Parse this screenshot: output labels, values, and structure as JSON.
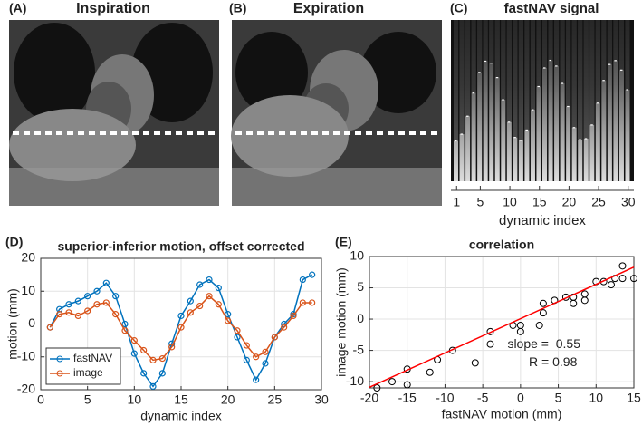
{
  "panels": [
    {
      "label": "(A)",
      "title": "Inspiration"
    },
    {
      "label": "(B)",
      "title": "Expiration"
    }
  ],
  "chart_data": [
    {
      "type": "image-strip",
      "label": "(C)",
      "title": "fastNAV signal",
      "x_label": "dynamic index",
      "xlim": [
        1,
        30
      ],
      "xticks": [
        1,
        5,
        10,
        15,
        20,
        25,
        30
      ]
    },
    {
      "type": "line",
      "label": "(D)",
      "title": "superior-inferior motion, offset corrected",
      "x_label": "dynamic index",
      "y_label": "motion (mm)",
      "x": [
        1,
        2,
        3,
        4,
        5,
        6,
        7,
        8,
        9,
        10,
        11,
        12,
        13,
        14,
        15,
        16,
        17,
        18,
        19,
        20,
        21,
        22,
        23,
        24,
        25,
        26,
        27,
        28,
        29
      ],
      "series": [
        {
          "name": "fastNAV",
          "color": "#0072BD",
          "values": [
            -1,
            4.5,
            6,
            7,
            8.5,
            10,
            12.5,
            8.5,
            0,
            -9,
            -15,
            -19,
            -15,
            -6,
            2.5,
            7,
            12,
            13.5,
            11,
            3,
            -4,
            -11,
            -17,
            -12,
            -4,
            0,
            3,
            13.5,
            15
          ]
        },
        {
          "name": "image",
          "color": "#D95319",
          "values": [
            -1,
            3,
            3.5,
            2.5,
            4,
            6,
            6.5,
            3,
            -2,
            -5,
            -8,
            -11,
            -10.5,
            -7,
            -1,
            3.5,
            5.5,
            8.5,
            6,
            1,
            -2,
            -6.5,
            -10,
            -8.5,
            -4,
            -1,
            2.5,
            6.5,
            6.5
          ]
        }
      ],
      "xlim": [
        0,
        30
      ],
      "xticks": [
        0,
        5,
        10,
        15,
        20,
        25,
        30
      ],
      "ylim": [
        -20,
        20
      ],
      "yticks": [
        -20,
        -10,
        0,
        10,
        20
      ],
      "grid": true,
      "legend": "south-west"
    },
    {
      "type": "scatter",
      "label": "(E)",
      "title": "correlation",
      "x_label": "fastNAV motion (mm)",
      "y_label": "image motion (mm)",
      "x": [
        -1,
        4.5,
        6,
        7,
        8.5,
        10,
        12.5,
        8.5,
        0,
        -9,
        -15,
        -19,
        -15,
        -6,
        2.5,
        7,
        12,
        13.5,
        11,
        3,
        -4,
        -11,
        -17,
        -12,
        -4,
        0,
        3,
        13.5,
        15
      ],
      "values": [
        -1,
        3,
        3.5,
        2.5,
        4,
        6,
        6.5,
        3,
        -2,
        -5,
        -8,
        -11,
        -10.5,
        -7,
        -1,
        3.5,
        5.5,
        8.5,
        6,
        1,
        -2,
        -6.5,
        -10,
        -8.5,
        -4,
        -1,
        2.5,
        6.5,
        6.5
      ],
      "color": "#000000",
      "fit": {
        "x": [
          -20,
          15
        ],
        "values": [
          -10.9,
          8.3
        ],
        "color": "#ff0000"
      },
      "annotations": [
        "slope =  0.55",
        "R = 0.98"
      ],
      "xlim": [
        -20,
        15
      ],
      "xticks": [
        -20,
        -15,
        -10,
        -5,
        0,
        5,
        10,
        15
      ],
      "ylim": [
        -11,
        10
      ],
      "yticks": [
        -10,
        -5,
        0,
        5,
        10
      ],
      "grid": true
    }
  ]
}
